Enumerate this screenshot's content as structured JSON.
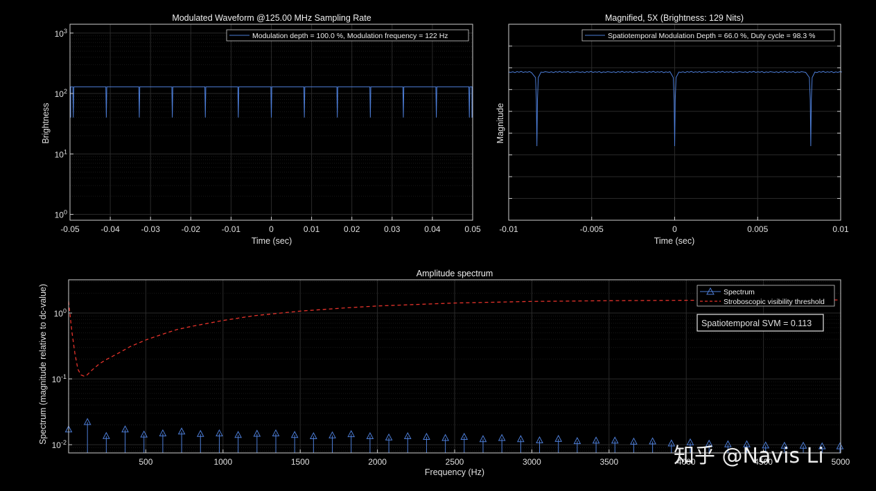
{
  "chart_data": [
    {
      "type": "line",
      "title": "Modulated Waveform @125.00 MHz Sampling Rate",
      "xlabel": "Time (sec)",
      "ylabel": "Brightness",
      "xlim": [
        -0.05,
        0.05
      ],
      "ylim": [
        0.8,
        1400
      ],
      "yscale": "log",
      "grid": true,
      "xticks": [
        "-0.05",
        "-0.04",
        "-0.03",
        "-0.02",
        "-0.01",
        "0",
        "0.01",
        "0.02",
        "0.03",
        "0.04",
        "0.05"
      ],
      "yticks": [
        {
          "value": 1,
          "base": "10",
          "exp": "0"
        },
        {
          "value": 10,
          "base": "10",
          "exp": "1"
        },
        {
          "value": 100,
          "base": "10",
          "exp": "2"
        },
        {
          "value": 1000,
          "base": "10",
          "exp": "3"
        }
      ],
      "legend": "Modulation depth = 100.0 %, Modulation frequency = 122 Hz",
      "legend_position": "top-right",
      "series": [
        {
          "baseline": 129,
          "dip_min": 40,
          "dip_times": [
            -0.04918,
            -0.04098,
            -0.03279,
            -0.02459,
            -0.01639,
            -0.0082,
            0.0,
            0.0082,
            0.01639,
            0.02459,
            0.03279,
            0.04098,
            0.04918
          ],
          "color": "#4d7ed8"
        }
      ]
    },
    {
      "type": "line",
      "title": "Magnified, 5X (Brightness: 129 Nits)",
      "xlabel": "Time (sec)",
      "ylabel": "Magnitude",
      "xlim": [
        -0.01,
        0.01
      ],
      "yticks_unlabeled": 8,
      "grid": true,
      "xticks": [
        "-0.01",
        "-0.005",
        "0",
        "0.005",
        "0.01"
      ],
      "legend": "Spatiotemporal Modulation Depth = 66.0 %, Duty cycle = 98.3 %",
      "legend_position": "top-right",
      "series": [
        {
          "baseline": 129,
          "dip_min": 40,
          "dip_times": [
            -0.0083,
            0.0,
            0.0082
          ],
          "color": "#4d7ed8"
        }
      ]
    },
    {
      "type": "scatter",
      "title": "Amplitude spectrum",
      "xlabel": "Frequency (Hz)",
      "ylabel": "Spectrum (magnitude relative to dc-value)",
      "xlim": [
        0,
        5000
      ],
      "ylim": [
        0.0075,
        3.2
      ],
      "yscale": "log",
      "grid": true,
      "xticks": [
        "500",
        "1000",
        "1500",
        "2000",
        "2500",
        "3000",
        "3500",
        "4000",
        "4500",
        "5000"
      ],
      "yticks": [
        {
          "value": 0.01,
          "base": "10",
          "exp": "-2"
        },
        {
          "value": 0.1,
          "base": "10",
          "exp": "-1"
        },
        {
          "value": 1,
          "base": "10",
          "exp": "0"
        }
      ],
      "legend_entries": [
        "Spectrum",
        "Stroboscopic visibility threshold"
      ],
      "legend_position": "top-right",
      "annotation": "Spatiotemporal SVM = 0.113",
      "series": [
        {
          "name": "Spectrum",
          "style": "stem-triangle",
          "color": "#4d7ed8",
          "x": [
            0,
            122,
            244,
            366,
            488,
            610,
            732,
            854,
            976,
            1098,
            1220,
            1342,
            1464,
            1586,
            1708,
            1830,
            1952,
            2074,
            2196,
            2318,
            2440,
            2562,
            2684,
            2806,
            2928,
            3050,
            3172,
            3294,
            3416,
            3538,
            3660,
            3782,
            3904,
            4026,
            4148,
            4270,
            4392,
            4514,
            4636,
            4758,
            4880,
            5002
          ],
          "y": [
            0.017,
            0.022,
            0.0135,
            0.017,
            0.0142,
            0.0148,
            0.0158,
            0.0145,
            0.0148,
            0.014,
            0.0146,
            0.0148,
            0.014,
            0.0134,
            0.0138,
            0.0144,
            0.0134,
            0.0128,
            0.0134,
            0.0131,
            0.0126,
            0.0131,
            0.0121,
            0.0126,
            0.0121,
            0.0116,
            0.0122,
            0.0113,
            0.0115,
            0.0115,
            0.0111,
            0.0112,
            0.0104,
            0.0108,
            0.0103,
            0.0101,
            0.0101,
            0.0097,
            0.0096,
            0.0096,
            0.0094,
            0.0094
          ]
        },
        {
          "name": "Stroboscopic visibility threshold",
          "style": "dashed",
          "color": "#e8332b",
          "x": [
            0,
            20,
            40,
            60,
            80,
            100,
            120,
            150,
            200,
            250,
            300,
            400,
            500,
            600,
            700,
            800,
            1000,
            1200,
            1500,
            1800,
            2000,
            2500,
            3000,
            3500,
            4000,
            4500,
            5000
          ],
          "y": [
            1.5,
            0.55,
            0.25,
            0.14,
            0.115,
            0.11,
            0.115,
            0.135,
            0.17,
            0.2,
            0.23,
            0.31,
            0.39,
            0.47,
            0.56,
            0.63,
            0.77,
            0.91,
            1.07,
            1.2,
            1.28,
            1.42,
            1.5,
            1.54,
            1.56,
            1.57,
            1.58
          ]
        }
      ]
    }
  ],
  "watermark": "知乎 @Navis Li"
}
